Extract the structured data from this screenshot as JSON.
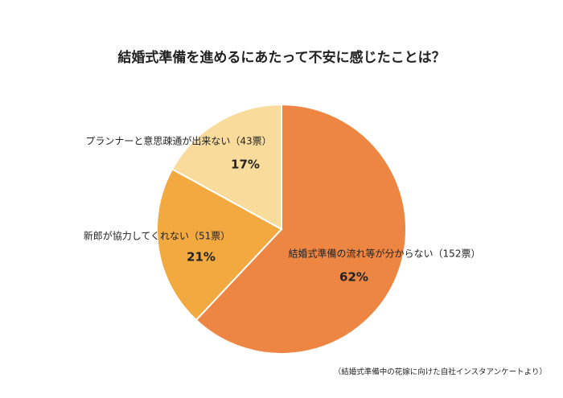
{
  "chart_data": {
    "type": "pie",
    "title": "結婚式準備を進めるにあたって不安に感じたことは？",
    "categories": [
      "結婚式準備の流れ等が分からない（152票）",
      "新郎が協力してくれない（51票）",
      "プランナーと意思疎通が出来ない（43票）"
    ],
    "values": [
      62,
      21,
      17
    ],
    "value_labels": [
      "62%",
      "21%",
      "17%"
    ],
    "colors": [
      "#ee8643",
      "#f2a940",
      "#f9dc9c"
    ],
    "note": "（結婚式準備中の花嫁に向けた自社インスタアンケートより）"
  }
}
